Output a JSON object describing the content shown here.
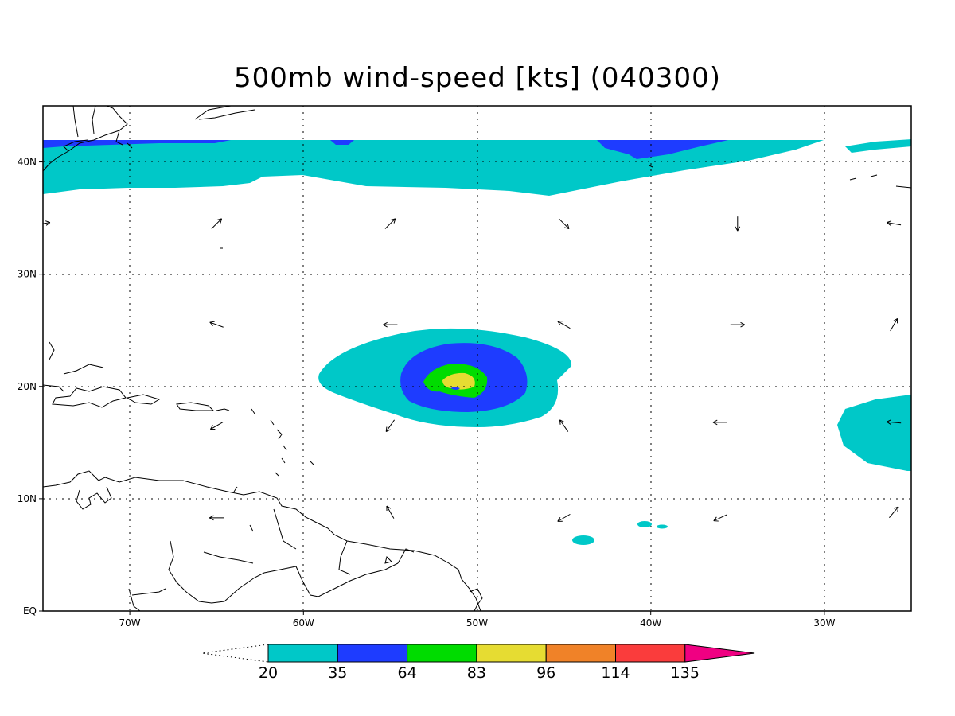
{
  "title": "500mb wind-speed [kts] (040300)",
  "map": {
    "lon_range": [
      -75,
      -25
    ],
    "lat_range": [
      0,
      45
    ],
    "grid_lines": "dotted",
    "lon_ticks": [
      {
        "value": -70,
        "label": "70W"
      },
      {
        "value": -60,
        "label": "60W"
      },
      {
        "value": -50,
        "label": "50W"
      },
      {
        "value": -40,
        "label": "40W"
      },
      {
        "value": -30,
        "label": "30W"
      }
    ],
    "lat_ticks": [
      {
        "value": 0,
        "label": "EQ"
      },
      {
        "value": 10,
        "label": "10N"
      },
      {
        "value": 20,
        "label": "20N"
      },
      {
        "value": 30,
        "label": "30N"
      },
      {
        "value": 40,
        "label": "40N"
      }
    ],
    "features": [
      "wind-speed-contours",
      "wind-direction-arrows",
      "coastlines"
    ]
  },
  "colorbar": {
    "levels": [
      {
        "label": "20",
        "color": "#00c8c8"
      },
      {
        "label": "35",
        "color": "#1e3cff"
      },
      {
        "label": "64",
        "color": "#00dc00"
      },
      {
        "label": "83",
        "color": "#e6dc32"
      },
      {
        "label": "96",
        "color": "#f08228"
      },
      {
        "label": "114",
        "color": "#fa3c3c"
      },
      {
        "label": "135",
        "color": "#f00082"
      }
    ],
    "bins": [
      {
        "from": 20,
        "to": 35,
        "color": "#00c8c8"
      },
      {
        "from": 35,
        "to": 64,
        "color": "#1e3cff"
      },
      {
        "from": 64,
        "to": 83,
        "color": "#00dc00"
      },
      {
        "from": 83,
        "to": 96,
        "color": "#e6dc32"
      },
      {
        "from": 96,
        "to": 114,
        "color": "#f08228"
      },
      {
        "from": 114,
        "to": 135,
        "color": "#fa3c3c"
      },
      {
        "from": 135,
        "to": null,
        "color": "#f00082"
      }
    ]
  },
  "wind_arrows": [
    {
      "lon": -75,
      "lat": 34.5,
      "dir_deg": 80
    },
    {
      "lon": -65,
      "lat": 34.5,
      "dir_deg": 45
    },
    {
      "lon": -55,
      "lat": 34.5,
      "dir_deg": 45
    },
    {
      "lon": -45,
      "lat": 34.5,
      "dir_deg": 135
    },
    {
      "lon": -35,
      "lat": 34.5,
      "dir_deg": 180
    },
    {
      "lon": -26,
      "lat": 34.5,
      "dir_deg": 280
    },
    {
      "lon": -65,
      "lat": 25.5,
      "dir_deg": 290
    },
    {
      "lon": -55,
      "lat": 25.5,
      "dir_deg": 270
    },
    {
      "lon": -45,
      "lat": 25.5,
      "dir_deg": 300
    },
    {
      "lon": -35,
      "lat": 25.5,
      "dir_deg": 90
    },
    {
      "lon": -26,
      "lat": 25.5,
      "dir_deg": 30
    },
    {
      "lon": -65,
      "lat": 16.5,
      "dir_deg": 240
    },
    {
      "lon": -55,
      "lat": 16.5,
      "dir_deg": 215
    },
    {
      "lon": -45,
      "lat": 16.5,
      "dir_deg": 325
    },
    {
      "lon": -36,
      "lat": 16.8,
      "dir_deg": 270
    },
    {
      "lon": -26,
      "lat": 16.8,
      "dir_deg": 275
    },
    {
      "lon": -65,
      "lat": 8.3,
      "dir_deg": 270
    },
    {
      "lon": -55,
      "lat": 8.8,
      "dir_deg": 330
    },
    {
      "lon": -45,
      "lat": 8.3,
      "dir_deg": 240
    },
    {
      "lon": -36,
      "lat": 8.3,
      "dir_deg": 245
    },
    {
      "lon": -26,
      "lat": 8.8,
      "dir_deg": 40
    }
  ]
}
